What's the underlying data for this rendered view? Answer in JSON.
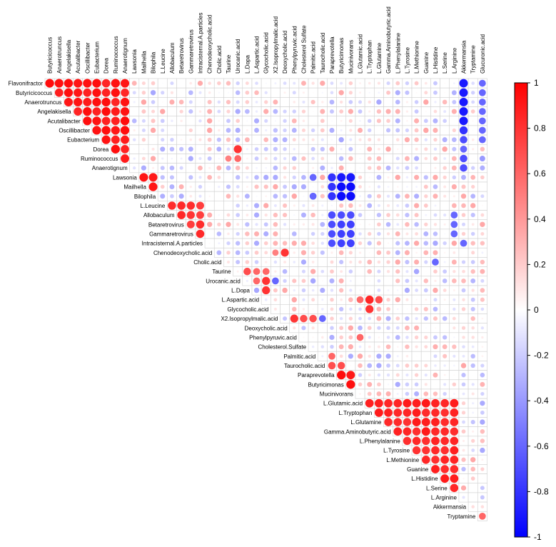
{
  "chart_data": {
    "type": "heatmap",
    "title": "",
    "variables": [
      "Butyricicoccus",
      "Anaerotruncus",
      "Angelakisella",
      "Acutalibacter",
      "Oscillibacter",
      "Eubacterium",
      "Dorea",
      "Ruminococcus",
      "Anaerotignum",
      "Lawsonia",
      "Mailhella",
      "Bilophila",
      "L.Leucine",
      "Allobaculum",
      "Betaretrovirus",
      "Gammaretrovirus",
      "Intracisternal.A.particles",
      "Chenodeoxycholic.acid",
      "Cholic.acid",
      "Taurine",
      "Urocanic.acid",
      "L.Dopa",
      "L.Aspartic.acid",
      "Glycocholic.acid",
      "X2.Isopropylmalic.acid",
      "Deoxycholic.acid",
      "Phenylpyruvic.acid",
      "Cholesterol.Sulfate",
      "Palmitic.acid",
      "Taurocholic.acid",
      "Paraprevotella",
      "Butyricimonas",
      "Mucinivorans",
      "L.Glutamic.acid",
      "L.Tryptophan",
      "L.Glutamine",
      "Gamma.Aminobutyric.acid",
      "L.Phenylalanine",
      "L.Tyrosine",
      "L.Methionine",
      "Guanine",
      "L.Histidine",
      "L.Serine",
      "L.Arginine",
      "Akkermansia",
      "Tryptamine",
      "Glucuronic.acid"
    ],
    "column_labels": [
      "Butyricicoccus",
      "Anaerotruncus",
      "Angelakisella",
      "Acutalibacter",
      "Oscillibacter",
      "Eubacterium",
      "Dorea",
      "Ruminococcus",
      "Anaerotignum",
      "Lawsonia",
      "Mailhella",
      "Bilophila",
      "L.Leucine",
      "Allobaculum",
      "Betaretrovirus",
      "Gammaretrovirus",
      "Intracisternal.A.particles",
      "Chenodeoxycholic.acid",
      "Cholic.acid",
      "Taurine",
      "Urocanic.acid",
      "L.Dopa",
      "L.Aspartic.acid",
      "Glycocholic.acid",
      "X2.Isopropylmalic.acid",
      "Deoxycholic.acid",
      "Phenylpyruvic.acid",
      "Cholesterol Sulfate",
      "Palmitic.acid",
      "Taurocholic.acid",
      "Paraprevotella",
      "Butyricimonas",
      "Mucinivorans",
      "L.Glutamic.acid",
      "L.Tryptophan",
      "L.Glutamine",
      "Gamma.Aminobutyric.acid",
      "L.Phenylalanine",
      "L.Tyrosine",
      "L.Methionine",
      "Guanine",
      "L.Histidine",
      "L.Serine",
      "L.Arginine",
      "Akkermansia",
      "Tryptamine",
      "Glucuronic.acid"
    ],
    "row_labels": [
      "Flavonifractor",
      "Butyricicoccus",
      "Anaerotruncus",
      "Angelakisella",
      "Acutalibacter",
      "Oscillibacter",
      "Eubacterium",
      "Dorea",
      "Ruminococcus",
      "Anaerotignum",
      "Lawsonia",
      "Mailhella",
      "Bilophila",
      "L.Leucine",
      "Allobaculum",
      "Betaretrovirus",
      "Gammaretrovirus",
      "Intracisternal.A.particles",
      "Chenodeoxycholic.acid",
      "Cholic.acid",
      "Taurine",
      "Urocanic.acid",
      "L.Dopa",
      "L.Aspartic.acid",
      "Glycocholic.acid",
      "X2.Isopropylmalic.acid",
      "Deoxycholic.acid",
      "Phenylpyruvic.acid",
      "Cholesterol.Sulfate",
      "Palmitic.acid",
      "Taurocholic.acid",
      "Paraprevotella",
      "Butyricimonas",
      "Mucinivorans",
      "L.Glutamic.acid",
      "L.Tryptophan",
      "L.Glutamine",
      "Gamma.Aminobutyric.acid",
      "L.Phenylalanine",
      "L.Tyrosine",
      "L.Methionine",
      "Guanine",
      "L.Histidine",
      "L.Serine",
      "L.Arginine",
      "Akkermansia",
      "Tryptamine"
    ],
    "shape": "circle sized and colored by correlation",
    "layout": "upper triangle",
    "colorbar": {
      "range": [
        -1,
        1
      ],
      "ticks": [
        1,
        0.8,
        0.6,
        0.4,
        0.2,
        0,
        -0.2,
        -0.4,
        -0.6,
        -0.8,
        -1
      ],
      "tick_labels": [
        "1",
        "0.8",
        "0.6",
        "0.4",
        "0.2",
        "0",
        "-0.2",
        "-0.4",
        "-0.6",
        "-0.8",
        "-1"
      ],
      "colors": {
        "negative": "#0000ff",
        "zero": "#ffffff",
        "positive": "#ff0000"
      }
    },
    "strong_blocks": [
      {
        "rows": [
          0,
          9
        ],
        "cols": [
          0,
          8
        ],
        "r": 0.95
      },
      {
        "rows": [
          10,
          12
        ],
        "cols": [
          9,
          11
        ],
        "r": 0.95
      },
      {
        "rows": [
          13,
          17
        ],
        "cols": [
          12,
          16
        ],
        "r": 0.85
      },
      {
        "rows": [
          34,
          44
        ],
        "cols": [
          33,
          43
        ],
        "r": 0.9
      }
    ],
    "correlations": [
      {
        "row": 0,
        "col": 44,
        "r": -0.9
      },
      {
        "row": 1,
        "col": 44,
        "r": -0.9
      },
      {
        "row": 2,
        "col": 44,
        "r": -0.9
      },
      {
        "row": 3,
        "col": 44,
        "r": -0.9
      },
      {
        "row": 4,
        "col": 44,
        "r": -0.9
      },
      {
        "row": 5,
        "col": 44,
        "r": -0.8
      },
      {
        "row": 6,
        "col": 44,
        "r": -0.7
      },
      {
        "row": 7,
        "col": 44,
        "r": -0.6
      },
      {
        "row": 8,
        "col": 44,
        "r": -0.7
      },
      {
        "row": 9,
        "col": 44,
        "r": -0.7
      },
      {
        "row": 0,
        "col": 46,
        "r": -0.6
      },
      {
        "row": 1,
        "col": 46,
        "r": -0.6
      },
      {
        "row": 2,
        "col": 46,
        "r": -0.6
      },
      {
        "row": 3,
        "col": 46,
        "r": -0.6
      },
      {
        "row": 4,
        "col": 46,
        "r": -0.6
      },
      {
        "row": 5,
        "col": 46,
        "r": -0.6
      },
      {
        "row": 6,
        "col": 46,
        "r": -0.6
      },
      {
        "row": 8,
        "col": 46,
        "r": -0.4
      },
      {
        "row": 7,
        "col": 20,
        "r": 0.8
      },
      {
        "row": 8,
        "col": 19,
        "r": 0.5
      },
      {
        "row": 8,
        "col": 20,
        "r": 0.6
      },
      {
        "row": 10,
        "col": 30,
        "r": -0.8
      },
      {
        "row": 10,
        "col": 31,
        "r": -0.9
      },
      {
        "row": 10,
        "col": 32,
        "r": -0.9
      },
      {
        "row": 11,
        "col": 30,
        "r": -0.8
      },
      {
        "row": 11,
        "col": 31,
        "r": -0.95
      },
      {
        "row": 11,
        "col": 32,
        "r": -0.95
      },
      {
        "row": 12,
        "col": 30,
        "r": -0.8
      },
      {
        "row": 12,
        "col": 31,
        "r": -0.95
      },
      {
        "row": 12,
        "col": 32,
        "r": -0.95
      },
      {
        "row": 10,
        "col": 28,
        "r": -0.6
      },
      {
        "row": 12,
        "col": 28,
        "r": -0.6
      },
      {
        "row": 14,
        "col": 30,
        "r": -0.7
      },
      {
        "row": 14,
        "col": 31,
        "r": -0.7
      },
      {
        "row": 14,
        "col": 32,
        "r": -0.7
      },
      {
        "row": 15,
        "col": 30,
        "r": -0.7
      },
      {
        "row": 15,
        "col": 31,
        "r": -0.75
      },
      {
        "row": 15,
        "col": 32,
        "r": -0.75
      },
      {
        "row": 16,
        "col": 30,
        "r": -0.7
      },
      {
        "row": 16,
        "col": 31,
        "r": -0.75
      },
      {
        "row": 16,
        "col": 32,
        "r": -0.75
      },
      {
        "row": 17,
        "col": 30,
        "r": -0.7
      },
      {
        "row": 17,
        "col": 31,
        "r": -0.75
      },
      {
        "row": 17,
        "col": 32,
        "r": -0.75
      },
      {
        "row": 14,
        "col": 43,
        "r": -0.6
      },
      {
        "row": 15,
        "col": 43,
        "r": -0.6
      },
      {
        "row": 16,
        "col": 43,
        "r": -0.6
      },
      {
        "row": 17,
        "col": 44,
        "r": -0.6
      },
      {
        "row": 19,
        "col": 41,
        "r": -0.6
      },
      {
        "row": 18,
        "col": 25,
        "r": 0.8
      },
      {
        "row": 18,
        "col": 24,
        "r": 0.5
      },
      {
        "row": 20,
        "col": 21,
        "r": 0.7
      },
      {
        "row": 20,
        "col": 22,
        "r": 0.6
      },
      {
        "row": 20,
        "col": 23,
        "r": 0.6
      },
      {
        "row": 21,
        "col": 22,
        "r": 0.6
      },
      {
        "row": 21,
        "col": 23,
        "r": 0.8
      },
      {
        "row": 21,
        "col": 24,
        "r": -0.6
      },
      {
        "row": 22,
        "col": 23,
        "r": 0.8
      },
      {
        "row": 23,
        "col": 33,
        "r": 0.6
      },
      {
        "row": 23,
        "col": 34,
        "r": 0.85
      },
      {
        "row": 23,
        "col": 35,
        "r": 0.7
      },
      {
        "row": 24,
        "col": 34,
        "r": 0.8
      },
      {
        "row": 25,
        "col": 26,
        "r": 0.8
      },
      {
        "row": 25,
        "col": 27,
        "r": 0.7
      },
      {
        "row": 25,
        "col": 28,
        "r": 0.7
      },
      {
        "row": 25,
        "col": 29,
        "r": -0.6
      },
      {
        "row": 27,
        "col": 33,
        "r": 0.6
      },
      {
        "row": 29,
        "col": 30,
        "r": 0.6
      },
      {
        "row": 30,
        "col": 30,
        "r": 0.7
      },
      {
        "row": 30,
        "col": 31,
        "r": 0.7
      },
      {
        "row": 31,
        "col": 31,
        "r": 0.95
      },
      {
        "row": 31,
        "col": 32,
        "r": 0.9
      },
      {
        "row": 32,
        "col": 32,
        "r": 0.95
      },
      {
        "row": 34,
        "col": 33,
        "r": 0.8
      },
      {
        "row": 46,
        "col": 46,
        "r": 0.6
      }
    ]
  }
}
